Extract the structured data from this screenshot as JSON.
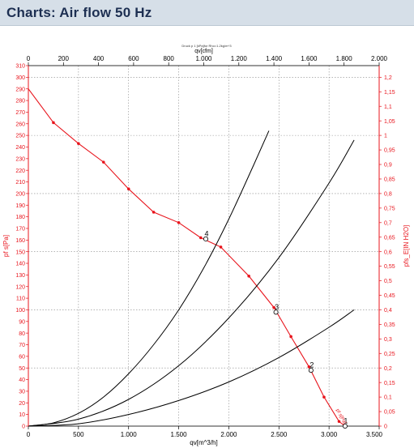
{
  "header": {
    "title": "Charts: Air flow 50 Hz"
  },
  "chart_data": {
    "type": "line",
    "subtitle": "Druck p 1 [kPa]for Rho=1.2kg/m^3",
    "x_bottom": {
      "label": "qv[m^3/h]",
      "range": [
        0,
        3500
      ],
      "ticks": [
        0,
        500,
        1000,
        1500,
        2000,
        2500,
        3000,
        3500
      ],
      "tick_labels": [
        "0",
        "500",
        "1.000",
        "1.500",
        "2.000",
        "2.500",
        "3.000",
        "3.500"
      ]
    },
    "x_top": {
      "label": "qv[cfm]",
      "range": [
        0,
        2000
      ],
      "ticks": [
        0,
        200,
        400,
        600,
        800,
        1000,
        1200,
        1400,
        1600,
        1800,
        2000
      ],
      "tick_labels": [
        "0",
        "200",
        "400",
        "600",
        "800",
        "1.000",
        "1.200",
        "1.400",
        "1.600",
        "1.800",
        "2.000"
      ]
    },
    "y_left": {
      "label": "pf s[Pa]",
      "range": [
        0,
        310
      ],
      "step": 10
    },
    "y_right": {
      "label": "pfs_E[IN H2O]",
      "range": [
        0,
        1.24
      ],
      "step": 0.05,
      "tick_labels": [
        "0",
        "0,05",
        "0,1",
        "0,15",
        "0,2",
        "0,25",
        "0,3",
        "0,35",
        "0,4",
        "0,45",
        "0,5",
        "0,55",
        "0,6",
        "0,65",
        "0,7",
        "0,75",
        "0,8",
        "0,85",
        "0,9",
        "0,95",
        "1",
        "1,05",
        "1,1",
        "1,15",
        "1,2"
      ]
    },
    "grid": true,
    "series": [
      {
        "label": "pf s[Pa]",
        "color": "#e8141c",
        "x": [
          0,
          250,
          500,
          750,
          1000,
          1250,
          1500,
          1720,
          1920,
          2200,
          2450,
          2620,
          2800,
          2950,
          3100,
          3160
        ],
        "y": [
          290,
          261,
          243,
          227,
          204,
          184,
          175,
          162,
          154,
          129,
          102,
          77,
          51,
          25,
          4,
          0
        ],
        "markers": true
      },
      {
        "name": "",
        "color": "#000000",
        "x": [
          0,
          250,
          500,
          750,
          1000,
          1250,
          1500,
          1750,
          2000,
          2250,
          2400
        ],
        "y": [
          0,
          2.8,
          11,
          25,
          45,
          70,
          100,
          136,
          178,
          225,
          254
        ]
      },
      {
        "name": "",
        "color": "#000000",
        "x": [
          0,
          500,
          1000,
          1500,
          2000,
          2500,
          3000,
          3250
        ],
        "y": [
          0,
          6,
          23,
          52,
          93,
          145,
          209,
          246
        ]
      },
      {
        "name": "",
        "color": "#000000",
        "x": [
          0,
          500,
          1000,
          1500,
          2000,
          2500,
          3000,
          3250
        ],
        "y": [
          0,
          2,
          10,
          22,
          38,
          59,
          85,
          100
        ]
      }
    ],
    "operating_points": [
      {
        "label": "1",
        "x": 3160,
        "y": 0
      },
      {
        "label": "2",
        "x": 2820,
        "y": 48
      },
      {
        "label": "3",
        "x": 2470,
        "y": 98
      },
      {
        "label": "4",
        "x": 1770,
        "y": 161
      }
    ],
    "annotations": [
      {
        "text": "pf s[Pa]",
        "x": 3070,
        "y": 14,
        "color": "#e8141c"
      }
    ]
  }
}
